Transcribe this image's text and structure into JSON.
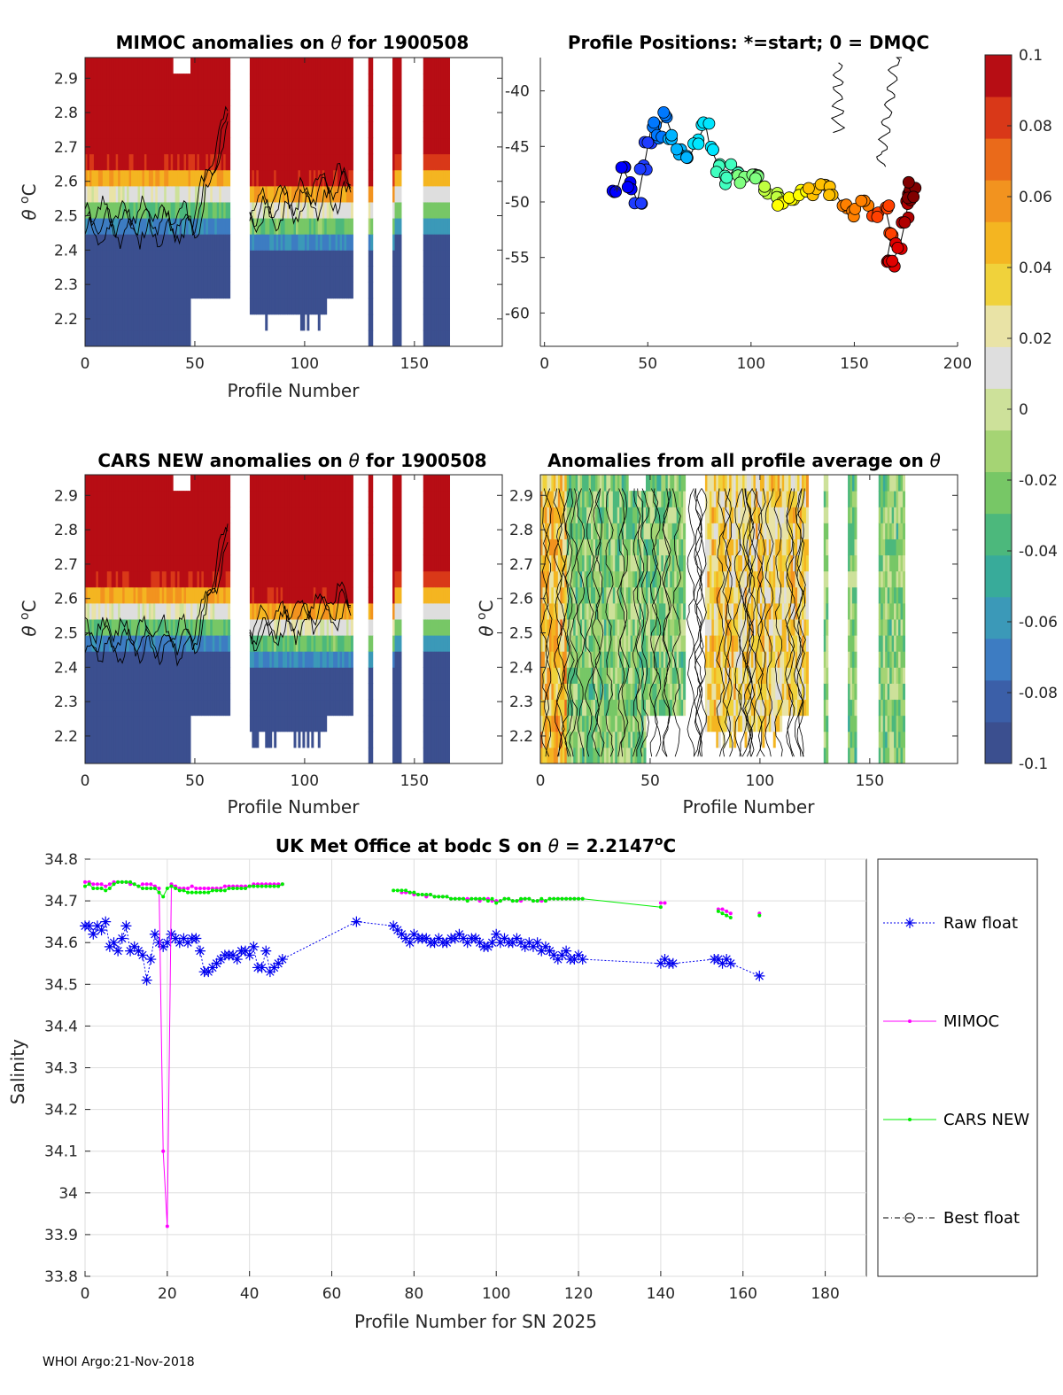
{
  "footer": "WHOI Argo:21-Nov-2018",
  "colors": {
    "theta_unit_sup": "o",
    "mimoc": "#ff00ff",
    "cars": "#00ee00",
    "raw": "#0000ee",
    "colormap": [
      "#3b4f8f",
      "#3b5fa8",
      "#3d7cc2",
      "#3b99b8",
      "#38ab9a",
      "#4cb87c",
      "#77c766",
      "#a5d474",
      "#cde19a",
      "#dedede",
      "#e9e3a6",
      "#f0d23b",
      "#f4b521",
      "#f2931f",
      "#ea6a1a",
      "#d93818",
      "#b70d14"
    ]
  },
  "colorbar": {
    "ticks": [
      "0.1",
      "0.08",
      "0.06",
      "0.04",
      "0.02",
      "0",
      "-0.02",
      "-0.04",
      "-0.06",
      "-0.08",
      "-0.1"
    ]
  },
  "chart_data": [
    {
      "id": "mimoc_anom",
      "type": "heatmap",
      "title_prefix": "MIMOC anomalies on ",
      "title_symbol": "θ",
      "title_suffix": "  for 1900508",
      "xlabel": "Profile Number",
      "ylabel_symbol": "θ",
      "ylabel_unit": "C",
      "xlim": [
        0,
        190
      ],
      "ylim": [
        2.12,
        2.96
      ],
      "xticks": [
        "0",
        "50",
        "100",
        "150"
      ],
      "yticks": [
        "2.9",
        "2.8",
        "2.7",
        "2.6",
        "2.5",
        "2.4",
        "2.3",
        "2.2"
      ],
      "color_range": [
        -0.1,
        0.1
      ]
    },
    {
      "id": "positions",
      "type": "scatter",
      "title": "Profile Positions: *=start; 0 = DMQC",
      "xlim": [
        -2,
        200
      ],
      "ylim": [
        -63,
        -37
      ],
      "xticks": [
        "0",
        "50",
        "100",
        "150",
        "200"
      ],
      "yticks": [
        "-40",
        "-45",
        "-50",
        "-55",
        "-60"
      ],
      "track": [
        [
          35,
          -49
        ],
        [
          38,
          -47
        ],
        [
          42,
          -48.5
        ],
        [
          45,
          -50
        ],
        [
          48,
          -47
        ],
        [
          50,
          -45
        ],
        [
          52,
          -43
        ],
        [
          55,
          -44
        ],
        [
          58,
          -42
        ],
        [
          62,
          -44
        ],
        [
          65,
          -45.5
        ],
        [
          70,
          -46
        ],
        [
          74,
          -44.5
        ],
        [
          78,
          -43
        ],
        [
          80,
          -45
        ],
        [
          85,
          -47
        ],
        [
          88,
          -48
        ],
        [
          92,
          -47
        ],
        [
          95,
          -48
        ],
        [
          100,
          -47.5
        ],
        [
          104,
          -48
        ],
        [
          108,
          -49
        ],
        [
          112,
          -49.5
        ],
        [
          115,
          -50
        ],
        [
          120,
          -50
        ],
        [
          125,
          -49
        ],
        [
          130,
          -49
        ],
        [
          135,
          -48.5
        ],
        [
          140,
          -49
        ],
        [
          145,
          -50.5
        ],
        [
          150,
          -51
        ],
        [
          155,
          -50
        ],
        [
          160,
          -51
        ],
        [
          165,
          -50.5
        ],
        [
          168,
          -53
        ],
        [
          166,
          -55
        ],
        [
          168,
          -55.5
        ],
        [
          172,
          -54
        ],
        [
          175,
          -51.5
        ],
        [
          176,
          -50
        ],
        [
          177,
          -49
        ],
        [
          178,
          -48.5
        ],
        [
          178,
          -49.5
        ]
      ]
    },
    {
      "id": "cars_anom",
      "type": "heatmap",
      "title_prefix": "CARS NEW anomalies on ",
      "title_symbol": "θ",
      "title_suffix": " for 1900508",
      "xlabel": "Profile Number",
      "ylabel_symbol": "θ",
      "ylabel_unit": "C",
      "xlim": [
        0,
        190
      ],
      "ylim": [
        2.12,
        2.96
      ],
      "xticks": [
        "0",
        "50",
        "100",
        "150"
      ],
      "yticks": [
        "2.9",
        "2.8",
        "2.7",
        "2.6",
        "2.5",
        "2.4",
        "2.3",
        "2.2"
      ],
      "color_range": [
        -0.1,
        0.1
      ]
    },
    {
      "id": "avg_anom",
      "type": "heatmap",
      "title_prefix": "Anomalies from all profile average on ",
      "title_symbol": "θ",
      "xlabel": "Profile Number",
      "ylabel_symbol": "θ",
      "ylabel_unit": "C",
      "xlim": [
        0,
        190
      ],
      "ylim": [
        2.12,
        2.96
      ],
      "xticks": [
        "0",
        "50",
        "100",
        "150"
      ],
      "yticks": [
        "2.9",
        "2.8",
        "2.7",
        "2.6",
        "2.5",
        "2.4",
        "2.3",
        "2.2"
      ],
      "color_range": [
        -0.1,
        0.1
      ]
    },
    {
      "id": "salinity",
      "type": "line",
      "title_prefix": "UK Met Office at bodc S on ",
      "title_symbol": "θ",
      "title_suffix": " = 2.2147",
      "title_unit": "C",
      "xlabel": "Profile Number for SN 2025",
      "ylabel": "Salinity",
      "xlim": [
        0,
        190
      ],
      "ylim": [
        33.8,
        34.8
      ],
      "xticks": [
        "0",
        "20",
        "40",
        "60",
        "80",
        "100",
        "120",
        "140",
        "160",
        "180"
      ],
      "yticks": [
        "34.8",
        "34.7",
        "34.6",
        "34.5",
        "34.4",
        "34.3",
        "34.2",
        "34.1",
        "34",
        "33.9",
        "33.8"
      ],
      "legend": [
        "Raw float",
        "MIMOC",
        "CARS NEW",
        "Best float"
      ],
      "series": [
        {
          "name": "Raw float",
          "x": [
            0,
            1,
            2,
            3,
            4,
            5,
            6,
            7,
            8,
            9,
            10,
            11,
            12,
            13,
            14,
            15,
            16,
            17,
            18,
            19,
            20,
            21,
            22,
            23,
            24,
            25,
            26,
            27,
            28,
            29,
            30,
            31,
            32,
            33,
            34,
            35,
            36,
            37,
            38,
            39,
            40,
            41,
            42,
            43,
            44,
            45,
            46,
            47,
            48,
            66,
            75,
            76,
            77,
            78,
            79,
            80,
            81,
            82,
            83,
            84,
            85,
            86,
            87,
            88,
            89,
            90,
            91,
            92,
            93,
            94,
            95,
            96,
            97,
            98,
            99,
            100,
            101,
            102,
            103,
            104,
            105,
            106,
            107,
            108,
            109,
            110,
            111,
            112,
            113,
            114,
            115,
            116,
            117,
            118,
            119,
            120,
            121,
            140,
            141,
            142,
            143,
            153,
            154,
            155,
            156,
            157,
            164
          ],
          "y": [
            34.64,
            34.64,
            34.62,
            34.64,
            34.63,
            34.65,
            34.59,
            34.6,
            34.58,
            34.61,
            34.64,
            34.58,
            34.59,
            34.58,
            34.57,
            34.51,
            34.56,
            34.62,
            34.6,
            34.59,
            34.6,
            34.62,
            34.61,
            34.6,
            34.61,
            34.6,
            34.61,
            34.61,
            34.58,
            34.53,
            34.53,
            34.54,
            34.55,
            34.56,
            34.57,
            34.57,
            34.57,
            34.56,
            34.58,
            34.58,
            34.57,
            34.59,
            34.54,
            34.54,
            34.58,
            34.53,
            34.54,
            34.55,
            34.56,
            34.65,
            34.64,
            34.63,
            34.62,
            34.61,
            34.6,
            34.62,
            34.61,
            34.61,
            34.61,
            34.6,
            34.6,
            34.61,
            34.6,
            34.6,
            34.61,
            34.61,
            34.62,
            34.61,
            34.6,
            34.61,
            34.61,
            34.6,
            34.59,
            34.59,
            34.6,
            34.62,
            34.6,
            34.61,
            34.6,
            34.6,
            34.61,
            34.6,
            34.59,
            34.6,
            34.59,
            34.6,
            34.58,
            34.59,
            34.58,
            34.57,
            34.56,
            34.57,
            34.58,
            34.56,
            34.56,
            34.57,
            34.56,
            34.55,
            34.56,
            34.55,
            34.55,
            34.56,
            34.56,
            34.55,
            34.56,
            34.55,
            34.52
          ]
        },
        {
          "name": "MIMOC",
          "x": [
            0,
            1,
            2,
            3,
            4,
            5,
            6,
            7,
            8,
            9,
            10,
            11,
            12,
            13,
            14,
            15,
            16,
            17,
            18,
            19,
            20,
            21,
            22,
            23,
            24,
            25,
            26,
            27,
            28,
            29,
            30,
            31,
            32,
            33,
            34,
            35,
            36,
            37,
            38,
            39,
            40,
            41,
            42,
            43,
            44,
            45,
            46,
            47,
            48,
            77,
            78,
            79,
            80,
            81,
            82,
            83,
            84,
            85,
            86,
            87,
            88,
            89,
            90,
            91,
            92,
            93,
            94,
            95,
            96,
            97,
            98,
            99,
            100,
            101,
            102,
            103,
            104,
            105,
            106,
            107,
            108,
            109,
            110,
            111,
            112,
            113,
            114,
            115,
            116,
            117,
            118,
            119,
            120,
            121,
            140,
            141,
            154,
            155,
            156,
            157,
            164
          ],
          "y": [
            34.745,
            34.745,
            34.74,
            34.74,
            34.74,
            34.735,
            34.74,
            34.745,
            34.745,
            34.745,
            34.745,
            34.74,
            34.74,
            34.735,
            34.74,
            34.74,
            34.74,
            34.735,
            34.73,
            34.1,
            33.92,
            34.74,
            34.735,
            34.73,
            34.73,
            34.73,
            34.735,
            34.73,
            34.73,
            34.73,
            34.73,
            34.73,
            34.73,
            34.73,
            34.735,
            34.735,
            34.735,
            34.735,
            34.735,
            34.735,
            34.735,
            34.74,
            34.74,
            34.74,
            34.74,
            34.74,
            34.74,
            34.74,
            34.74,
            34.72,
            34.72,
            34.72,
            34.715,
            34.715,
            34.715,
            34.71,
            34.715,
            34.71,
            34.71,
            34.71,
            34.71,
            34.705,
            34.705,
            34.705,
            34.705,
            34.705,
            34.705,
            34.705,
            34.7,
            34.705,
            34.705,
            34.7,
            34.7,
            34.7,
            34.705,
            34.705,
            34.7,
            34.7,
            34.7,
            34.705,
            34.705,
            34.7,
            34.7,
            34.7,
            34.7,
            34.705,
            34.705,
            34.705,
            34.705,
            34.705,
            34.705,
            34.705,
            34.705,
            34.705,
            34.695,
            34.695,
            34.68,
            34.68,
            34.675,
            34.67,
            34.67
          ]
        },
        {
          "name": "CARS NEW",
          "x": [
            0,
            1,
            2,
            3,
            4,
            5,
            6,
            7,
            8,
            9,
            10,
            11,
            12,
            13,
            14,
            15,
            16,
            17,
            18,
            19,
            20,
            21,
            22,
            23,
            24,
            25,
            26,
            27,
            28,
            29,
            30,
            31,
            32,
            33,
            34,
            35,
            36,
            37,
            38,
            39,
            40,
            41,
            42,
            43,
            44,
            45,
            46,
            47,
            48,
            75,
            76,
            77,
            78,
            79,
            80,
            81,
            82,
            83,
            84,
            85,
            86,
            87,
            88,
            89,
            90,
            91,
            92,
            93,
            94,
            95,
            96,
            97,
            98,
            99,
            100,
            101,
            102,
            103,
            104,
            105,
            106,
            107,
            108,
            109,
            110,
            111,
            112,
            113,
            114,
            115,
            116,
            117,
            118,
            119,
            120,
            121,
            140,
            154,
            155,
            156,
            157,
            164
          ],
          "y": [
            34.735,
            34.74,
            34.73,
            34.73,
            34.73,
            34.725,
            34.73,
            34.74,
            34.745,
            34.745,
            34.745,
            34.745,
            34.74,
            34.735,
            34.73,
            34.73,
            34.73,
            34.73,
            34.72,
            34.71,
            34.73,
            34.735,
            34.73,
            34.725,
            34.725,
            34.72,
            34.72,
            34.72,
            34.72,
            34.72,
            34.72,
            34.725,
            34.725,
            34.725,
            34.725,
            34.73,
            34.73,
            34.73,
            34.73,
            34.73,
            34.735,
            34.735,
            34.735,
            34.735,
            34.735,
            34.735,
            34.735,
            34.735,
            34.74,
            34.725,
            34.725,
            34.725,
            34.725,
            34.72,
            34.72,
            34.715,
            34.715,
            34.715,
            34.715,
            34.71,
            34.71,
            34.71,
            34.71,
            34.705,
            34.705,
            34.705,
            34.705,
            34.7,
            34.705,
            34.705,
            34.705,
            34.705,
            34.7,
            34.705,
            34.695,
            34.7,
            34.705,
            34.705,
            34.7,
            34.7,
            34.705,
            34.705,
            34.705,
            34.7,
            34.7,
            34.705,
            34.7,
            34.705,
            34.705,
            34.705,
            34.705,
            34.705,
            34.705,
            34.705,
            34.705,
            34.705,
            34.685,
            34.675,
            34.67,
            34.665,
            34.66,
            34.665
          ]
        }
      ]
    }
  ]
}
